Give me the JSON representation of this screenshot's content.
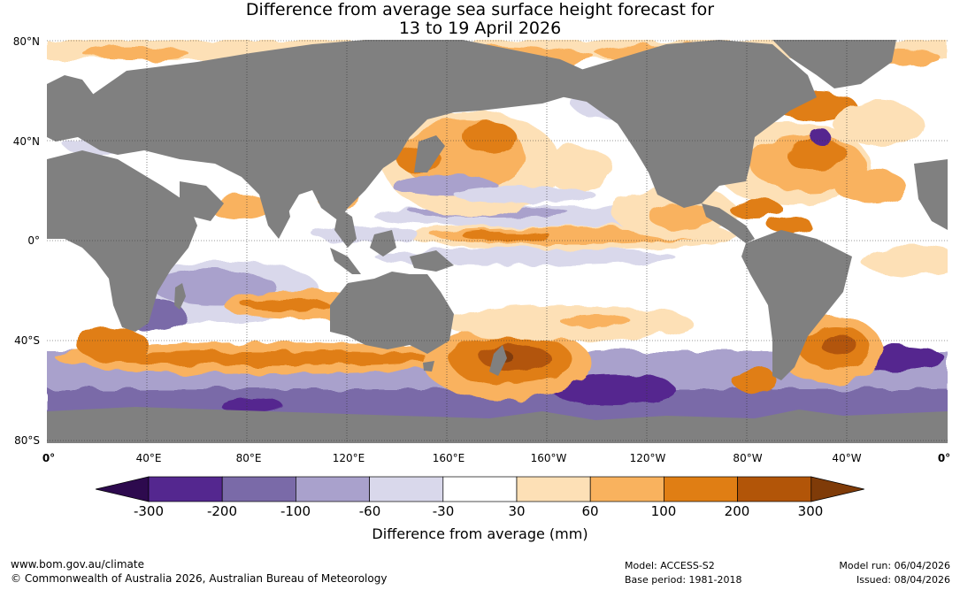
{
  "title_line1": "Difference from average sea surface height forecast for",
  "title_line2": "13 to 19 April 2026",
  "lat_labels": [
    "80°N",
    "40°N",
    "0°",
    "40°S",
    "80°S"
  ],
  "lon_labels": [
    "0°",
    "40°E",
    "80°E",
    "120°E",
    "160°E",
    "160°W",
    "120°W",
    "80°W",
    "40°W",
    "0°"
  ],
  "colorbar": {
    "title": "Difference from average (mm)",
    "ticks": [
      "-300",
      "-200",
      "-100",
      "-60",
      "-30",
      "30",
      "60",
      "100",
      "200",
      "300"
    ],
    "colors": [
      "#2d0a4e",
      "#54278f",
      "#7a6aa8",
      "#a9a1cc",
      "#d9d8eb",
      "#ffffff",
      "#fde0b6",
      "#f9b25e",
      "#e07e14",
      "#b25508",
      "#7f3b08"
    ]
  },
  "colors": {
    "land": "#808080",
    "ocean": "#ffffff",
    "grid": "#333333"
  },
  "footer": {
    "website": "www.bom.gov.au/climate",
    "copyright": "© Commonwealth of Australia 2026, Australian Bureau of Meteorology",
    "model": "Model: ACCESS-S2",
    "base_period": "Base period: 1981-2018",
    "model_run": "Model run: 06/04/2026",
    "issued": "Issued: 08/04/2026"
  }
}
